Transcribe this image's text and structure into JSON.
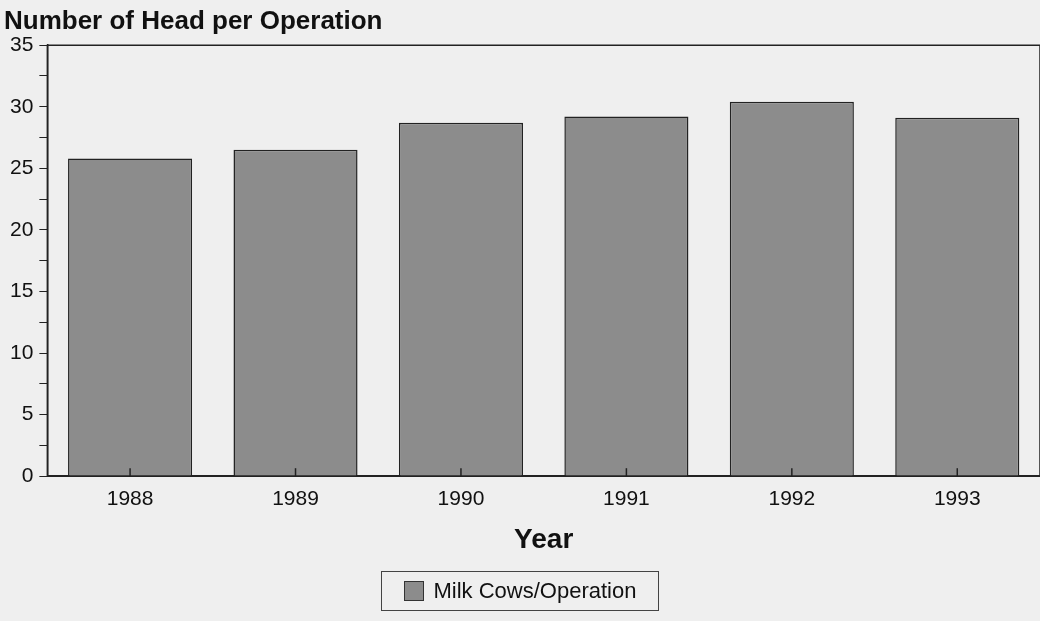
{
  "chart_data": {
    "type": "bar",
    "title": "Number of Head per Operation",
    "xlabel": "Year",
    "categories": [
      "1988",
      "1989",
      "1990",
      "1991",
      "1992",
      "1993"
    ],
    "series": [
      {
        "name": "Milk Cows/Operation",
        "color": "#8c8c8c",
        "values": [
          25.8,
          26.5,
          28.7,
          29.2,
          30.4,
          29.1
        ]
      }
    ],
    "ylim": [
      0,
      35
    ],
    "yticks": [
      0,
      {
        "value": 2.5,
        "label": null
      },
      5,
      {
        "value": 7.5,
        "label": null
      },
      10,
      {
        "value": 12.5,
        "label": null
      },
      15,
      {
        "value": 17.5,
        "label": null
      },
      20,
      {
        "value": 22.5,
        "label": null
      },
      25,
      {
        "value": 27.5,
        "label": null
      },
      30,
      {
        "value": 32.5,
        "label": null
      },
      35
    ],
    "grid": false,
    "legend": "bottom"
  }
}
